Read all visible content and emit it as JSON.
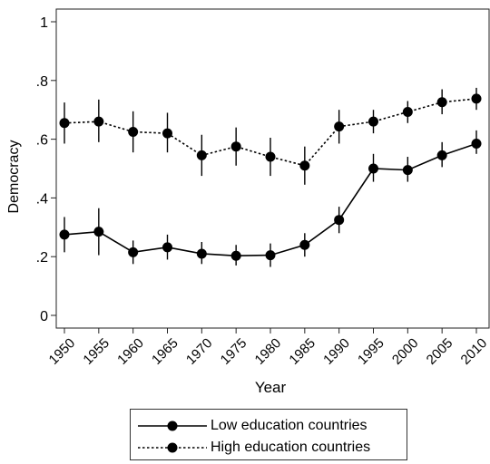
{
  "chart_data": {
    "type": "line",
    "xlabel": "Year",
    "ylabel": "Democracy",
    "x": [
      1950,
      1955,
      1960,
      1965,
      1970,
      1975,
      1980,
      1985,
      1990,
      1995,
      2000,
      2005,
      2010
    ],
    "x_tick_labels": [
      "1950",
      "1955",
      "1960",
      "1965",
      "1970",
      "1975",
      "1980",
      "1985",
      "1990",
      "1995",
      "2000",
      "2005",
      "2010"
    ],
    "ylim": [
      0,
      1
    ],
    "y_ticks": [
      0,
      0.2,
      0.4,
      0.6,
      0.8,
      1
    ],
    "y_tick_labels": [
      "0",
      ".2",
      ".4",
      ".6",
      ".8",
      "1"
    ],
    "grid": false,
    "legend_position": "bottom",
    "series": [
      {
        "name": "Low education countries",
        "line_style": "solid",
        "color": "#000000",
        "values": [
          0.275,
          0.285,
          0.215,
          0.232,
          0.21,
          0.203,
          0.205,
          0.24,
          0.325,
          0.5,
          0.495,
          0.545,
          0.585
        ],
        "ci_low": [
          0.215,
          0.205,
          0.175,
          0.19,
          0.175,
          0.17,
          0.165,
          0.2,
          0.28,
          0.455,
          0.455,
          0.505,
          0.55
        ],
        "ci_high": [
          0.335,
          0.365,
          0.255,
          0.275,
          0.25,
          0.24,
          0.245,
          0.28,
          0.37,
          0.55,
          0.54,
          0.59,
          0.63
        ]
      },
      {
        "name": "High education countries",
        "line_style": "dotted",
        "color": "#000000",
        "values": [
          0.655,
          0.66,
          0.625,
          0.62,
          0.545,
          0.575,
          0.54,
          0.51,
          0.643,
          0.66,
          0.693,
          0.726,
          0.738
        ],
        "ci_low": [
          0.585,
          0.59,
          0.555,
          0.555,
          0.475,
          0.51,
          0.475,
          0.445,
          0.585,
          0.62,
          0.655,
          0.685,
          0.7
        ],
        "ci_high": [
          0.725,
          0.735,
          0.695,
          0.69,
          0.615,
          0.64,
          0.605,
          0.575,
          0.7,
          0.7,
          0.73,
          0.77,
          0.775
        ]
      }
    ]
  }
}
